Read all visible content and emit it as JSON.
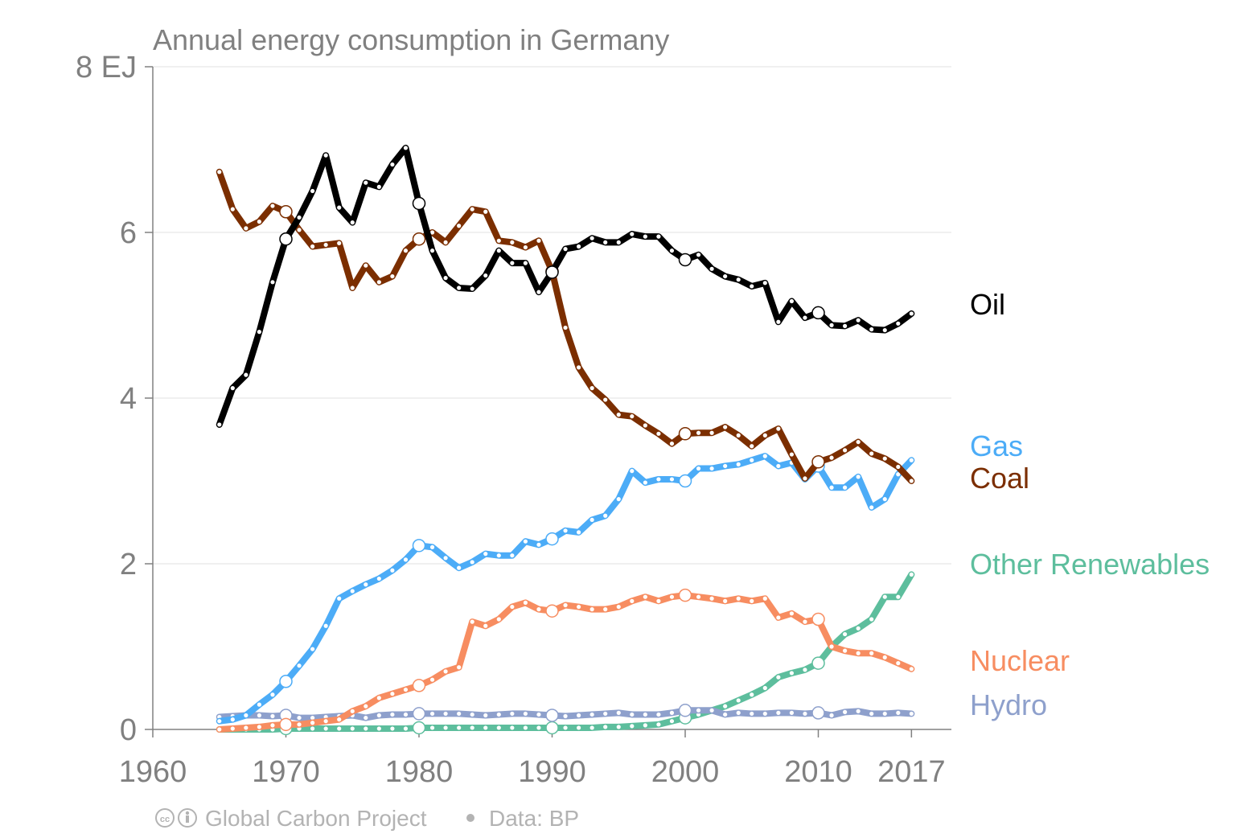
{
  "chart_data": {
    "type": "line",
    "title": "Annual energy consumption in Germany",
    "ylabel": "",
    "xlabel": "",
    "xlim": [
      1960,
      1962
    ],
    "ylim": [
      0,
      8
    ],
    "x_ticks": [
      1960,
      1970,
      1980,
      1990,
      2000,
      2010,
      2017
    ],
    "x_tick_labels": [
      "1960",
      "1970",
      "1980",
      "1990",
      "2000",
      "2010",
      "2017"
    ],
    "y_ticks": [
      0,
      2,
      4,
      6,
      8
    ],
    "y_tick_labels": [
      "0",
      "2",
      "4",
      "6",
      "8 EJ"
    ],
    "grid": "horizontal",
    "legend": "direct labels at right",
    "footer": {
      "credit": "Global Carbon Project",
      "source": "Data: BP"
    },
    "x": [
      1965,
      1966,
      1967,
      1968,
      1969,
      1970,
      1971,
      1972,
      1973,
      1974,
      1975,
      1976,
      1977,
      1978,
      1979,
      1980,
      1981,
      1982,
      1983,
      1984,
      1985,
      1986,
      1987,
      1988,
      1989,
      1990,
      1991,
      1992,
      1993,
      1994,
      1995,
      1996,
      1997,
      1998,
      1999,
      2000,
      2001,
      2002,
      2003,
      2004,
      2005,
      2006,
      2007,
      2008,
      2009,
      2010,
      2011,
      2012,
      2013,
      2014,
      2015,
      2016,
      2017
    ],
    "series": [
      {
        "name": "Oil",
        "color": "#000000",
        "values": [
          3.68,
          4.12,
          4.28,
          4.8,
          5.4,
          5.92,
          6.18,
          6.5,
          6.93,
          6.3,
          6.12,
          6.6,
          6.55,
          6.82,
          7.02,
          6.35,
          5.78,
          5.45,
          5.33,
          5.32,
          5.48,
          5.78,
          5.63,
          5.63,
          5.28,
          5.52,
          5.8,
          5.83,
          5.93,
          5.88,
          5.88,
          5.98,
          5.95,
          5.95,
          5.78,
          5.67,
          5.73,
          5.56,
          5.47,
          5.43,
          5.35,
          5.39,
          4.92,
          5.17,
          4.97,
          5.03,
          4.88,
          4.87,
          4.94,
          4.83,
          4.82,
          4.9,
          5.02
        ]
      },
      {
        "name": "Coal",
        "color": "#7b2e00",
        "values": [
          6.73,
          6.28,
          6.05,
          6.13,
          6.32,
          6.25,
          6.03,
          5.83,
          5.85,
          5.87,
          5.33,
          5.6,
          5.4,
          5.47,
          5.78,
          5.92,
          6.0,
          5.88,
          6.08,
          6.28,
          6.25,
          5.9,
          5.88,
          5.82,
          5.9,
          5.53,
          4.85,
          4.37,
          4.12,
          3.98,
          3.8,
          3.78,
          3.67,
          3.57,
          3.45,
          3.57,
          3.58,
          3.58,
          3.65,
          3.55,
          3.42,
          3.55,
          3.63,
          3.32,
          3.03,
          3.23,
          3.28,
          3.37,
          3.47,
          3.33,
          3.27,
          3.17,
          3.0
        ]
      },
      {
        "name": "Gas",
        "color": "#4cacf7",
        "values": [
          0.1,
          0.12,
          0.17,
          0.3,
          0.42,
          0.58,
          0.77,
          0.97,
          1.25,
          1.58,
          1.67,
          1.75,
          1.82,
          1.92,
          2.05,
          2.22,
          2.2,
          2.07,
          1.95,
          2.02,
          2.12,
          2.1,
          2.1,
          2.27,
          2.23,
          2.3,
          2.4,
          2.38,
          2.53,
          2.58,
          2.78,
          3.12,
          2.98,
          3.02,
          3.02,
          3.0,
          3.15,
          3.15,
          3.18,
          3.2,
          3.25,
          3.3,
          3.18,
          3.22,
          3.02,
          3.18,
          2.92,
          2.92,
          3.05,
          2.68,
          2.78,
          3.08,
          3.25
        ]
      },
      {
        "name": "Other Renewables",
        "color": "#5dbe9d",
        "values": [
          0.0,
          0.0,
          0.0,
          0.0,
          0.0,
          0.01,
          0.01,
          0.01,
          0.01,
          0.01,
          0.01,
          0.01,
          0.01,
          0.01,
          0.01,
          0.02,
          0.02,
          0.02,
          0.02,
          0.02,
          0.02,
          0.02,
          0.02,
          0.02,
          0.02,
          0.02,
          0.02,
          0.02,
          0.02,
          0.03,
          0.03,
          0.04,
          0.05,
          0.06,
          0.1,
          0.14,
          0.18,
          0.23,
          0.28,
          0.35,
          0.42,
          0.5,
          0.63,
          0.68,
          0.72,
          0.8,
          1.0,
          1.15,
          1.22,
          1.33,
          1.6,
          1.6,
          1.87
        ]
      },
      {
        "name": "Nuclear",
        "color": "#f78d61",
        "values": [
          0.0,
          0.01,
          0.02,
          0.03,
          0.05,
          0.06,
          0.06,
          0.08,
          0.1,
          0.12,
          0.22,
          0.28,
          0.38,
          0.43,
          0.48,
          0.53,
          0.6,
          0.7,
          0.75,
          1.3,
          1.25,
          1.33,
          1.48,
          1.53,
          1.45,
          1.43,
          1.5,
          1.48,
          1.45,
          1.45,
          1.48,
          1.55,
          1.6,
          1.55,
          1.6,
          1.62,
          1.6,
          1.58,
          1.55,
          1.58,
          1.55,
          1.58,
          1.35,
          1.4,
          1.3,
          1.33,
          1.0,
          0.95,
          0.92,
          0.92,
          0.87,
          0.8,
          0.73
        ]
      },
      {
        "name": "Hydro",
        "color": "#8ea0cc",
        "values": [
          0.15,
          0.16,
          0.17,
          0.17,
          0.16,
          0.17,
          0.14,
          0.14,
          0.15,
          0.16,
          0.17,
          0.14,
          0.17,
          0.18,
          0.18,
          0.19,
          0.19,
          0.19,
          0.19,
          0.18,
          0.17,
          0.18,
          0.19,
          0.19,
          0.18,
          0.17,
          0.16,
          0.17,
          0.18,
          0.19,
          0.2,
          0.18,
          0.18,
          0.18,
          0.2,
          0.23,
          0.23,
          0.23,
          0.18,
          0.2,
          0.19,
          0.19,
          0.2,
          0.2,
          0.19,
          0.2,
          0.17,
          0.21,
          0.22,
          0.19,
          0.19,
          0.2,
          0.19
        ]
      }
    ]
  }
}
